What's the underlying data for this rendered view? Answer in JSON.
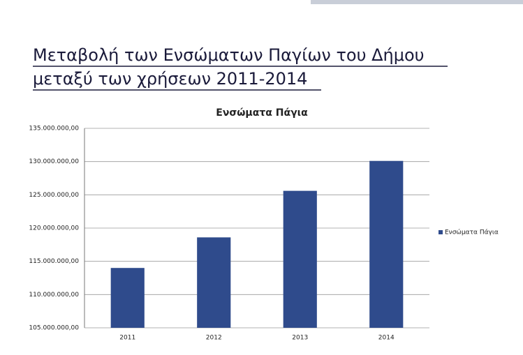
{
  "heading": [
    "Μεταβολή των Ενσώματων Παγίων του Δήμου",
    "μεταξύ των χρήσεων 2011-2014"
  ],
  "chart_data": {
    "type": "bar",
    "title": "Ενσώματα Πάγια",
    "categories": [
      "2011",
      "2012",
      "2013",
      "2014"
    ],
    "series": [
      {
        "name": "Ενσώματα Πάγια",
        "color": "#2f4b8c",
        "values": [
          114000000,
          118600000,
          125600000,
          130100000
        ]
      }
    ],
    "ylim": [
      105000000,
      135000000
    ],
    "yticks": [
      {
        "value": 105000000,
        "label": "105.000.000,00"
      },
      {
        "value": 110000000,
        "label": "110.000.000,00"
      },
      {
        "value": 115000000,
        "label": "115.000.000,00"
      },
      {
        "value": 120000000,
        "label": "120.000.000,00"
      },
      {
        "value": 125000000,
        "label": "125.000.000,00"
      },
      {
        "value": 130000000,
        "label": "130.000.000,00"
      },
      {
        "value": 135000000,
        "label": "135.000.000,00"
      }
    ],
    "grid": true,
    "legend": "right"
  }
}
